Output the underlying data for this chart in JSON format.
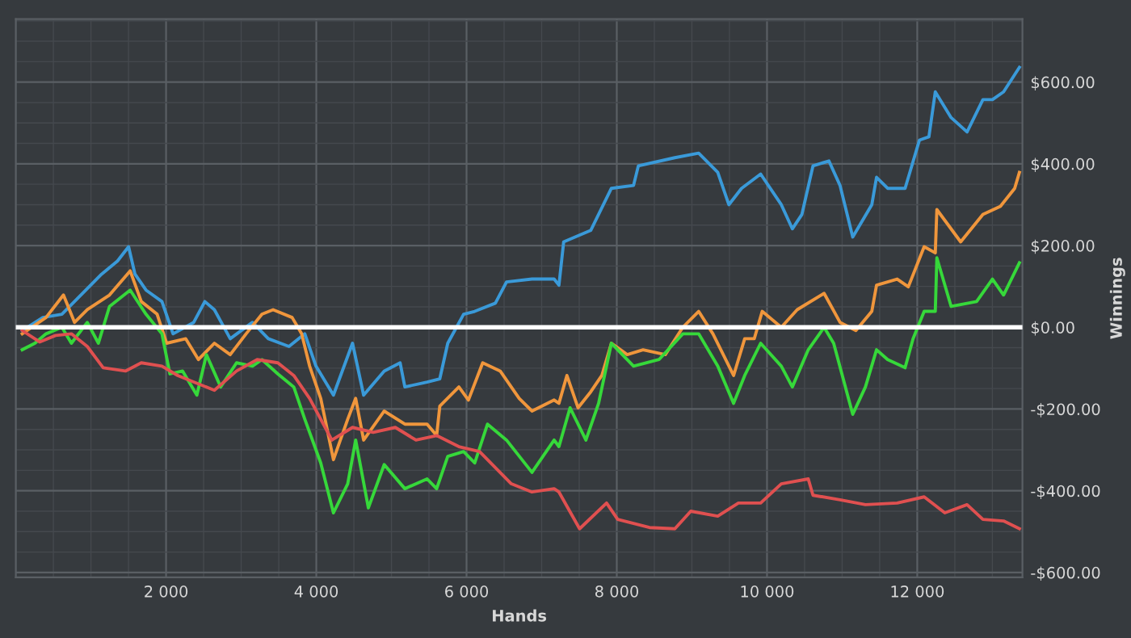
{
  "chart_data": {
    "type": "line",
    "xlabel": "Hands",
    "ylabel": "Winnings",
    "xlim": [
      0,
      13400
    ],
    "ylim": [
      -612,
      754
    ],
    "xticks": [
      {
        "value": 2000,
        "label": "2 000"
      },
      {
        "value": 4000,
        "label": "4 000"
      },
      {
        "value": 6000,
        "label": "6 000"
      },
      {
        "value": 8000,
        "label": "8 000"
      },
      {
        "value": 10000,
        "label": "10 000"
      },
      {
        "value": 12000,
        "label": "12 000"
      }
    ],
    "yticks": [
      {
        "value": -600,
        "label": "-$600.00"
      },
      {
        "value": -400,
        "label": "-$400.00"
      },
      {
        "value": -200,
        "label": "-$200.00"
      },
      {
        "value": 0,
        "label": "$0.00"
      },
      {
        "value": 200,
        "label": "$200.00"
      },
      {
        "value": 400,
        "label": "$400.00"
      },
      {
        "value": 600,
        "label": "$600.00"
      }
    ],
    "grid": true,
    "marker": "none",
    "line_style": "solid",
    "ref_lines": [
      {
        "axis": "y",
        "value": 0,
        "label": null,
        "color": "#ffffff"
      }
    ],
    "series": [
      {
        "color": "#3a9ad9",
        "x": [
          85,
          359,
          613,
          1142,
          1353,
          1501,
          1586,
          1733,
          1945,
          2093,
          2368,
          2516,
          2643,
          2854,
          3150,
          3361,
          3636,
          3847,
          3995,
          4228,
          4482,
          4630,
          4904,
          5116,
          5179,
          5475,
          5644,
          5750,
          5961,
          6109,
          6384,
          6532,
          6871,
          7166,
          7230,
          7293,
          7653,
          7928,
          8223,
          8287,
          8773,
          9090,
          9344,
          9492,
          9661,
          9915,
          10190,
          10337,
          10464,
          10612,
          10824,
          10972,
          11141,
          11395,
          11458,
          11606,
          11838,
          12029,
          12155,
          12240,
          12451,
          12663,
          12874,
          13001,
          13149,
          13360
        ],
        "values": [
          -8,
          24,
          32,
          130,
          162,
          197,
          130,
          91,
          63,
          -16,
          12,
          63,
          43,
          -28,
          12,
          -28,
          -47,
          -16,
          -95,
          -166,
          -39,
          -166,
          -107,
          -87,
          -146,
          -134,
          -126,
          -39,
          32,
          39,
          59,
          111,
          118,
          118,
          103,
          209,
          237,
          340,
          347,
          395,
          415,
          426,
          379,
          300,
          340,
          375,
          300,
          241,
          276,
          395,
          407,
          347,
          221,
          300,
          367,
          340,
          340,
          458,
          466,
          576,
          513,
          478,
          557,
          557,
          576,
          636
        ]
      },
      {
        "color": "#f0963c",
        "x": [
          85,
          402,
          634,
          782,
          951,
          1247,
          1522,
          1670,
          1881,
          2008,
          2262,
          2431,
          2643,
          2854,
          3065,
          3277,
          3425,
          3678,
          3805,
          3911,
          4059,
          4228,
          4418,
          4524,
          4630,
          4904,
          5179,
          5475,
          5602,
          5644,
          5898,
          6025,
          6215,
          6448,
          6701,
          6871,
          7166,
          7230,
          7336,
          7484,
          7653,
          7801,
          7928,
          8139,
          8350,
          8646,
          8879,
          9090,
          9280,
          9555,
          9703,
          9830,
          9936,
          10190,
          10401,
          10760,
          10972,
          11183,
          11395,
          11458,
          11733,
          11881,
          12092,
          12240,
          12261,
          12578,
          12874,
          13107,
          13297,
          13360
        ],
        "values": [
          -16,
          24,
          79,
          12,
          43,
          79,
          138,
          63,
          32,
          -39,
          -28,
          -79,
          -39,
          -67,
          -16,
          32,
          43,
          24,
          -16,
          -95,
          -174,
          -324,
          -225,
          -174,
          -276,
          -205,
          -237,
          -237,
          -265,
          -193,
          -146,
          -178,
          -87,
          -107,
          -174,
          -205,
          -178,
          -186,
          -118,
          -197,
          -158,
          -118,
          -39,
          -67,
          -55,
          -67,
          0,
          39,
          -16,
          -118,
          -28,
          -28,
          39,
          0,
          43,
          83,
          12,
          -8,
          39,
          103,
          118,
          99,
          197,
          182,
          288,
          209,
          276,
          296,
          340,
          379
        ]
      },
      {
        "color": "#36d83a",
        "x": [
          85,
          254,
          402,
          613,
          740,
          951,
          1099,
          1247,
          1522,
          1733,
          1945,
          2051,
          2220,
          2410,
          2537,
          2727,
          2938,
          3150,
          3277,
          3488,
          3700,
          3847,
          4059,
          4228,
          4418,
          4524,
          4693,
          4904,
          5179,
          5475,
          5602,
          5750,
          5961,
          6109,
          6279,
          6532,
          6871,
          7166,
          7230,
          7378,
          7589,
          7758,
          7928,
          8223,
          8562,
          8879,
          9090,
          9344,
          9555,
          9703,
          9915,
          10190,
          10337,
          10549,
          10760,
          10887,
          11141,
          11310,
          11458,
          11606,
          11838,
          11944,
          12092,
          12240,
          12261,
          12451,
          12790,
          13001,
          13149,
          13360
        ],
        "values": [
          -55,
          -39,
          -16,
          0,
          -39,
          12,
          -39,
          51,
          91,
          32,
          -16,
          -114,
          -107,
          -166,
          -67,
          -146,
          -87,
          -95,
          -79,
          -114,
          -146,
          -225,
          -332,
          -454,
          -383,
          -276,
          -442,
          -336,
          -395,
          -371,
          -395,
          -316,
          -304,
          -332,
          -237,
          -276,
          -355,
          -276,
          -292,
          -197,
          -276,
          -186,
          -39,
          -95,
          -79,
          -16,
          -16,
          -95,
          -186,
          -118,
          -39,
          -95,
          -146,
          -55,
          0,
          -39,
          -213,
          -146,
          -55,
          -79,
          -99,
          -28,
          39,
          39,
          170,
          51,
          63,
          118,
          79,
          158
        ]
      },
      {
        "color": "#e05050",
        "x": [
          85,
          317,
          529,
          740,
          951,
          1163,
          1459,
          1670,
          1945,
          2156,
          2368,
          2643,
          2938,
          3213,
          3488,
          3700,
          3911,
          4207,
          4482,
          4757,
          5052,
          5327,
          5602,
          5898,
          6173,
          6596,
          6871,
          7166,
          7230,
          7505,
          7864,
          8012,
          8435,
          8773,
          8985,
          9344,
          9619,
          9915,
          10190,
          10549,
          10612,
          10972,
          11310,
          11733,
          12092,
          12367,
          12663,
          12874,
          13149,
          13360
        ],
        "values": [
          -8,
          -36,
          -20,
          -16,
          -47,
          -99,
          -107,
          -87,
          -95,
          -118,
          -134,
          -154,
          -107,
          -79,
          -87,
          -118,
          -174,
          -276,
          -245,
          -257,
          -245,
          -276,
          -265,
          -292,
          -304,
          -383,
          -403,
          -395,
          -403,
          -493,
          -430,
          -470,
          -490,
          -493,
          -450,
          -462,
          -430,
          -430,
          -383,
          -371,
          -411,
          -422,
          -434,
          -430,
          -415,
          -454,
          -434,
          -470,
          -474,
          -493
        ]
      }
    ]
  }
}
